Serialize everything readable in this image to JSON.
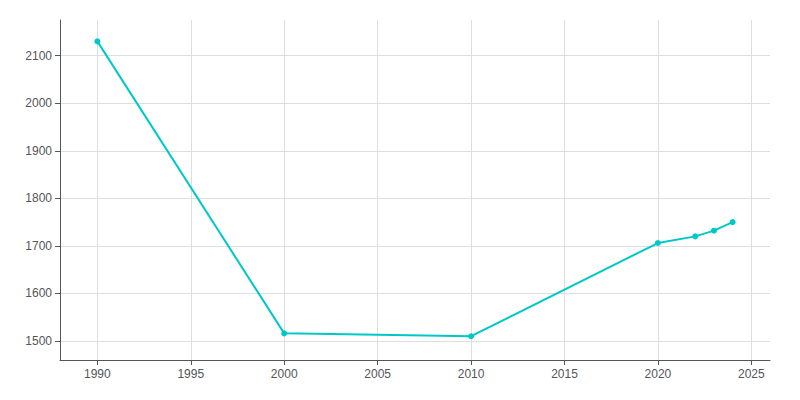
{
  "chart_data": {
    "type": "line",
    "x": [
      1990,
      2000,
      2010,
      2020,
      2022,
      2023,
      2024
    ],
    "values": [
      2130,
      1516,
      1510,
      1706,
      1720,
      1732,
      1750
    ],
    "color": "#00c8c8",
    "marker": "circle",
    "xlim": [
      1988,
      2026
    ],
    "ylim": [
      1460,
      2175
    ],
    "xticks": [
      1990,
      1995,
      2000,
      2005,
      2010,
      2015,
      2020,
      2025
    ],
    "yticks": [
      1500,
      1600,
      1700,
      1800,
      1900,
      2000,
      2100
    ],
    "grid": true
  }
}
